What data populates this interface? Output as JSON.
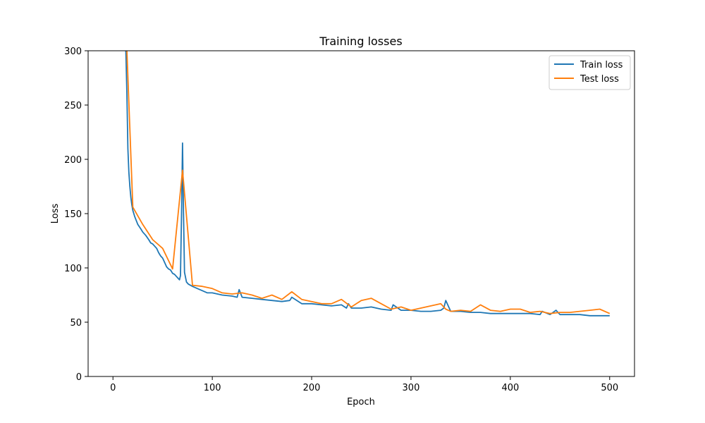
{
  "chart_data": {
    "type": "line",
    "title": "Training losses",
    "xlabel": "Epoch",
    "ylabel": "Loss",
    "xlim": [
      -25,
      525
    ],
    "ylim": [
      0,
      300
    ],
    "xticks": [
      0,
      100,
      200,
      300,
      400,
      500
    ],
    "yticks": [
      0,
      50,
      100,
      150,
      200,
      250,
      300
    ],
    "legend_position": "top-right",
    "grid": false,
    "series": [
      {
        "name": "Train loss",
        "color": "#1f77b4",
        "x": [
          13,
          14,
          15,
          16,
          17,
          18,
          19,
          20,
          22,
          25,
          28,
          30,
          33,
          36,
          38,
          40,
          42,
          44,
          46,
          48,
          50,
          52,
          54,
          56,
          58,
          60,
          62,
          64,
          66,
          67,
          68,
          69,
          70,
          71,
          72,
          74,
          76,
          80,
          85,
          90,
          95,
          100,
          110,
          120,
          125,
          127,
          130,
          140,
          150,
          160,
          170,
          178,
          180,
          190,
          200,
          210,
          220,
          230,
          235,
          237,
          240,
          250,
          260,
          270,
          280,
          282,
          290,
          300,
          310,
          320,
          330,
          333,
          335,
          340,
          350,
          360,
          370,
          380,
          390,
          400,
          410,
          420,
          430,
          432,
          440,
          446,
          450,
          460,
          470,
          480,
          490,
          500
        ],
        "y": [
          300,
          260,
          210,
          188,
          175,
          165,
          158,
          153,
          147,
          140,
          136,
          133,
          130,
          126,
          123,
          122,
          120,
          118,
          114,
          111,
          109,
          105,
          101,
          99,
          98,
          95,
          94,
          92,
          90,
          89,
          93,
          150,
          215,
          150,
          96,
          87,
          85,
          83,
          81,
          79,
          77,
          77,
          75,
          74,
          73,
          80,
          73,
          72,
          71,
          70,
          69,
          70,
          73,
          67,
          67,
          66,
          65,
          66,
          63,
          67,
          63,
          63,
          64,
          62,
          61,
          66,
          61,
          61,
          60,
          60,
          61,
          63,
          70,
          60,
          60,
          59,
          59,
          58,
          58,
          58,
          58,
          58,
          57,
          60,
          57,
          61,
          57,
          57,
          57,
          56,
          56,
          56
        ]
      },
      {
        "name": "Test loss",
        "color": "#ff7f0e",
        "x": [
          14,
          20,
          30,
          40,
          50,
          60,
          70,
          80,
          90,
          100,
          110,
          120,
          130,
          140,
          150,
          160,
          170,
          180,
          190,
          200,
          210,
          220,
          230,
          240,
          250,
          260,
          270,
          280,
          290,
          300,
          310,
          320,
          330,
          335,
          340,
          350,
          360,
          370,
          380,
          390,
          400,
          410,
          420,
          430,
          440,
          450,
          460,
          470,
          480,
          490,
          500
        ],
        "y": [
          300,
          156,
          140,
          126,
          118,
          99,
          190,
          84,
          83,
          81,
          77,
          76,
          77,
          75,
          72,
          75,
          71,
          78,
          71,
          69,
          67,
          67,
          71,
          64,
          70,
          72,
          67,
          62,
          64,
          61,
          63,
          65,
          67,
          62,
          60,
          61,
          60,
          66,
          61,
          60,
          62,
          62,
          59,
          60,
          58,
          59,
          59,
          60,
          61,
          62,
          58
        ]
      }
    ]
  }
}
